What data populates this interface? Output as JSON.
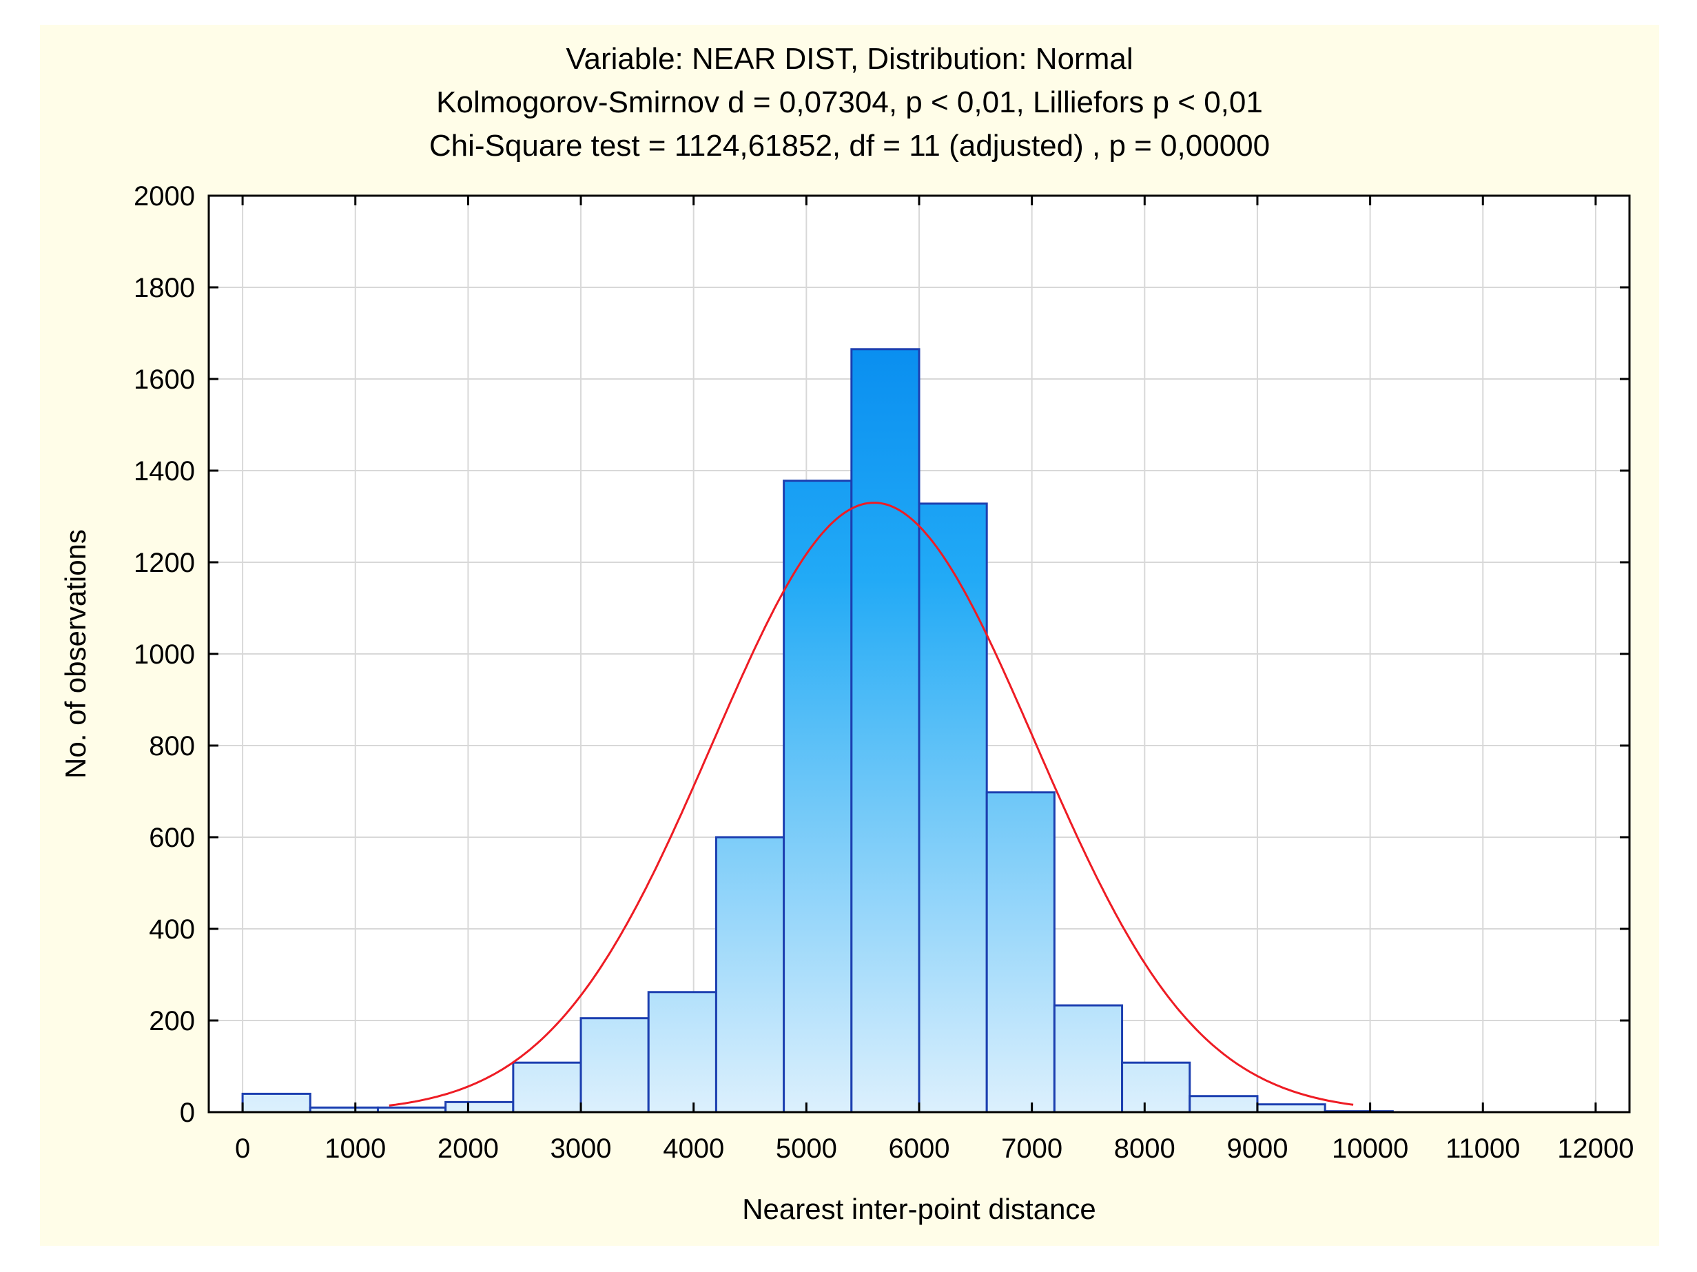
{
  "chart_data": {
    "type": "bar",
    "title_lines": [
      "Variable: NEAR  DIST, Distribution: Normal",
      "Kolmogorov-Smirnov d = 0,07304, p < 0,01, Lilliefors p < 0,01",
      "Chi-Square test = 1124,61852, df = 11 (adjusted) , p = 0,00000"
    ],
    "xlabel": "Nearest inter-point distance",
    "ylabel": "No. of observations",
    "xlim": [
      -300,
      12300
    ],
    "ylim": [
      0,
      2000
    ],
    "x_ticks": [
      0,
      1000,
      2000,
      3000,
      4000,
      5000,
      6000,
      7000,
      8000,
      9000,
      10000,
      11000,
      12000
    ],
    "y_ticks": [
      0,
      200,
      400,
      600,
      800,
      1000,
      1200,
      1400,
      1600,
      1800,
      2000
    ],
    "bin_width": 600,
    "bins": [
      {
        "start": 0,
        "count": 40
      },
      {
        "start": 600,
        "count": 10
      },
      {
        "start": 1200,
        "count": 10
      },
      {
        "start": 1800,
        "count": 22
      },
      {
        "start": 2400,
        "count": 108
      },
      {
        "start": 3000,
        "count": 205
      },
      {
        "start": 3600,
        "count": 262
      },
      {
        "start": 4200,
        "count": 600
      },
      {
        "start": 4800,
        "count": 1378
      },
      {
        "start": 5400,
        "count": 1665
      },
      {
        "start": 6000,
        "count": 1328
      },
      {
        "start": 6600,
        "count": 698
      },
      {
        "start": 7200,
        "count": 233
      },
      {
        "start": 7800,
        "count": 108
      },
      {
        "start": 8400,
        "count": 35
      },
      {
        "start": 9000,
        "count": 17
      },
      {
        "start": 9600,
        "count": 2
      }
    ],
    "normal_fit": {
      "mean": 5600,
      "std": 1430,
      "peak": 1330,
      "x_range": [
        1300,
        9850
      ]
    },
    "colors": {
      "bar_top": "#0a8ff0",
      "bar_bottom": "#dcf0fd",
      "bar_border": "#1c3fb0",
      "curve": "#ee1c24",
      "grid": "#d8d8d8",
      "axis": "#000000",
      "background": "#fffde8"
    }
  }
}
